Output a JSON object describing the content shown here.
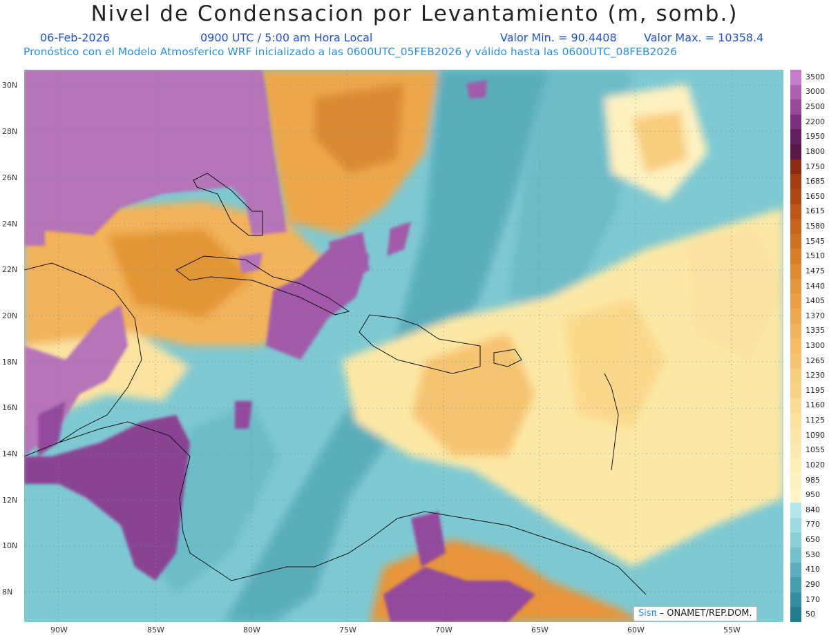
{
  "header": {
    "title": "Nivel de Condensacion por Levantamiento (m, somb.)",
    "date": "06-Feb-2026",
    "time": "0900 UTC / 5:00 am Hora Local",
    "valmin": "Valor Min. = 90.4408",
    "valmax": "Valor Max. = 10358.4",
    "subtitle": "Pronóstico con el Modelo Atmosferico WRF inicializado a las 0600UTC_05FEB2026 y válido hasta las  0600UTC_08FEB2026"
  },
  "map": {
    "lat_labels": [
      "30N",
      "28N",
      "26N",
      "24N",
      "22N",
      "20N",
      "18N",
      "16N",
      "14N",
      "12N",
      "10N",
      "8N"
    ],
    "lon_labels": [
      "90W",
      "85W",
      "80W",
      "75W",
      "70W",
      "65W",
      "60W",
      "55W"
    ],
    "credit_sis": "Sisπ",
    "credit_rest": " – ONAMET/REP.DOM."
  },
  "colorbar": {
    "levels": [
      "3500",
      "3000",
      "2500",
      "2200",
      "1950",
      "1800",
      "1750",
      "1685",
      "1650",
      "1615",
      "1580",
      "1545",
      "1510",
      "1475",
      "1440",
      "1405",
      "1370",
      "1335",
      "1300",
      "1265",
      "1230",
      "1195",
      "1160",
      "1125",
      "1090",
      "1055",
      "1020",
      "985",
      "950",
      "840",
      "770",
      "650",
      "530",
      "410",
      "290",
      "170",
      "50"
    ],
    "colors": [
      "#c57fc9",
      "#ad5fb1",
      "#934a99",
      "#7a3280",
      "#631e60",
      "#5a1846",
      "#8a2a10",
      "#a23b10",
      "#b04815",
      "#bd5618",
      "#c8631b",
      "#d07121",
      "#d87d29",
      "#df8a33",
      "#e5973f",
      "#ea9f47",
      "#eea950",
      "#f1b35b",
      "#f4bc66",
      "#f6c571",
      "#f8cd7c",
      "#f9d487",
      "#fadb92",
      "#fbe19c",
      "#fce6a6",
      "#fdeab0",
      "#feeeb8",
      "#fef1c0",
      "#fef4c8",
      "#b6e7ec",
      "#9fdde5",
      "#88cfd8",
      "#72c0cb",
      "#5cb0bd",
      "#479faf",
      "#338fa0",
      "#237e90"
    ]
  }
}
